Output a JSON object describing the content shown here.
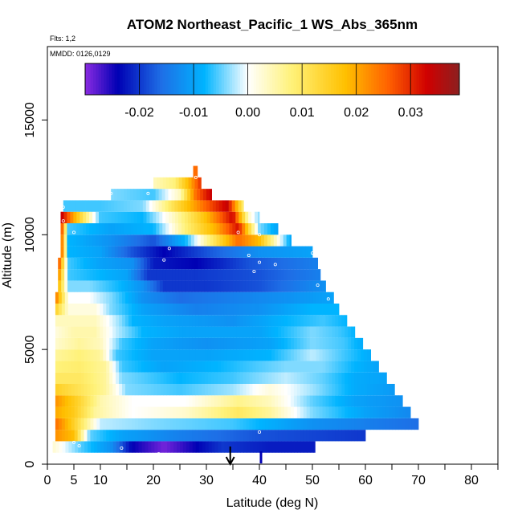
{
  "chart_data": {
    "type": "heatmap",
    "title": "ATOM2 Northeast_Pacific_1 WS_Abs_365nm",
    "flights_note": "Flts: 1,2",
    "date_note": "MMDD: 0126,0129",
    "xlabel": "Latitude (deg N)",
    "ylabel": "Altitude (m)",
    "xlim": [
      0,
      85
    ],
    "ylim": [
      0,
      18200
    ],
    "x_ticks": [
      0,
      5,
      10,
      20,
      30,
      40,
      50,
      60,
      70,
      80
    ],
    "x_minor_ticks": [
      15,
      25,
      35,
      45,
      55,
      65,
      75,
      85
    ],
    "y_ticks": [
      0,
      5000,
      10000,
      15000
    ],
    "colorbar": {
      "vmin": -0.03,
      "vmax": 0.039,
      "ticks": [
        -0.02,
        -0.01,
        0.0,
        0.01,
        0.02,
        0.03
      ],
      "tick_labels": [
        "-0.02",
        "-0.01",
        "0.00",
        "0.01",
        "0.02",
        "0.03"
      ],
      "colors": [
        "#8b2be2",
        "#0000b4",
        "#1e6ee6",
        "#00b4ff",
        "#ffffff",
        "#fff27a",
        "#ffc000",
        "#ff6000",
        "#d00000",
        "#8b2020"
      ]
    },
    "rows": [
      {
        "alt": 750,
        "lat_min": 1,
        "lat_max": 50.5,
        "stops": [
          [
            1,
            0.003
          ],
          [
            6,
            -0.005
          ],
          [
            12,
            -0.012
          ],
          [
            16,
            -0.024
          ],
          [
            22,
            -0.029
          ],
          [
            27,
            -0.025
          ],
          [
            33,
            -0.02
          ],
          [
            42,
            -0.022
          ],
          [
            50.5,
            -0.022
          ]
        ]
      },
      {
        "alt": 1250,
        "lat_min": 1.5,
        "lat_max": 60,
        "stops": [
          [
            1.5,
            0.022
          ],
          [
            5,
            0.018
          ],
          [
            8,
            -0.005
          ],
          [
            14,
            -0.01
          ],
          [
            25,
            -0.014
          ],
          [
            40,
            -0.018
          ],
          [
            60,
            -0.02
          ]
        ]
      },
      {
        "alt": 1750,
        "lat_min": 1.5,
        "lat_max": 70,
        "stops": [
          [
            1.5,
            0.025
          ],
          [
            4,
            0.018
          ],
          [
            7,
            0.008
          ],
          [
            10,
            -0.002
          ],
          [
            20,
            -0.004
          ],
          [
            35,
            -0.006
          ],
          [
            50,
            -0.012
          ],
          [
            70,
            -0.016
          ]
        ]
      },
      {
        "alt": 2250,
        "lat_min": 1.5,
        "lat_max": 68.5,
        "stops": [
          [
            1.5,
            0.02
          ],
          [
            5,
            0.016
          ],
          [
            9,
            0.006
          ],
          [
            16,
            0.0
          ],
          [
            26,
            0.003
          ],
          [
            36,
            0.01
          ],
          [
            42,
            0.006
          ],
          [
            50,
            -0.004
          ],
          [
            60,
            -0.01
          ],
          [
            68.5,
            -0.013
          ]
        ]
      },
      {
        "alt": 2750,
        "lat_min": 1.5,
        "lat_max": 67,
        "stops": [
          [
            1.5,
            0.022
          ],
          [
            6,
            0.014
          ],
          [
            10,
            0.005
          ],
          [
            16,
            0.0
          ],
          [
            26,
            0.0
          ],
          [
            36,
            0.007
          ],
          [
            42,
            0.004
          ],
          [
            50,
            -0.005
          ],
          [
            58,
            -0.01
          ],
          [
            67,
            -0.012
          ]
        ]
      },
      {
        "alt": 3250,
        "lat_min": 1.5,
        "lat_max": 65.5,
        "stops": [
          [
            1.5,
            0.015
          ],
          [
            6,
            0.011
          ],
          [
            11,
            0.006
          ],
          [
            15,
            -0.004
          ],
          [
            25,
            -0.006
          ],
          [
            35,
            -0.003
          ],
          [
            42,
            0.002
          ],
          [
            50,
            -0.003
          ],
          [
            58,
            -0.009
          ],
          [
            65.5,
            -0.011
          ]
        ]
      },
      {
        "alt": 3750,
        "lat_min": 1.5,
        "lat_max": 64,
        "stops": [
          [
            1.5,
            0.01
          ],
          [
            6,
            0.01
          ],
          [
            11,
            0.006
          ],
          [
            14,
            -0.004
          ],
          [
            25,
            -0.008
          ],
          [
            35,
            -0.006
          ],
          [
            45,
            -0.002
          ],
          [
            52,
            -0.005
          ],
          [
            58,
            -0.009
          ],
          [
            64,
            -0.01
          ]
        ]
      },
      {
        "alt": 4250,
        "lat_min": 1.5,
        "lat_max": 62.5,
        "stops": [
          [
            1.5,
            0.008
          ],
          [
            6,
            0.009
          ],
          [
            11,
            0.006
          ],
          [
            14,
            -0.006
          ],
          [
            22,
            -0.01
          ],
          [
            32,
            -0.008
          ],
          [
            45,
            -0.004
          ],
          [
            52,
            -0.004
          ],
          [
            58,
            -0.008
          ],
          [
            62.5,
            -0.01
          ]
        ]
      },
      {
        "alt": 4750,
        "lat_min": 1.5,
        "lat_max": 61,
        "stops": [
          [
            1.5,
            0.006
          ],
          [
            6,
            0.008
          ],
          [
            10,
            0.006
          ],
          [
            13,
            -0.006
          ],
          [
            20,
            -0.01
          ],
          [
            30,
            -0.01
          ],
          [
            42,
            -0.008
          ],
          [
            50,
            -0.002
          ],
          [
            56,
            -0.006
          ],
          [
            61,
            -0.009
          ]
        ]
      },
      {
        "alt": 5250,
        "lat_min": 1.5,
        "lat_max": 59.5,
        "stops": [
          [
            1.5,
            0.003
          ],
          [
            6,
            0.006
          ],
          [
            10,
            0.004
          ],
          [
            14,
            -0.006
          ],
          [
            20,
            -0.01
          ],
          [
            30,
            -0.012
          ],
          [
            42,
            -0.01
          ],
          [
            50,
            -0.004
          ],
          [
            56,
            -0.006
          ],
          [
            59.5,
            -0.009
          ]
        ]
      },
      {
        "alt": 5750,
        "lat_min": 1.5,
        "lat_max": 58,
        "stops": [
          [
            1.5,
            0.002
          ],
          [
            5,
            0.005
          ],
          [
            9,
            0.005
          ],
          [
            13,
            -0.002
          ],
          [
            18,
            -0.008
          ],
          [
            26,
            -0.01
          ],
          [
            40,
            -0.01
          ],
          [
            50,
            -0.004
          ],
          [
            55,
            -0.006
          ],
          [
            58,
            -0.008
          ]
        ]
      },
      {
        "alt": 6250,
        "lat_min": 1.5,
        "lat_max": 56.5,
        "stops": [
          [
            1.5,
            0.004
          ],
          [
            5,
            0.004
          ],
          [
            9,
            0.004
          ],
          [
            14,
            -0.004
          ],
          [
            16,
            -0.008
          ],
          [
            22,
            -0.01
          ],
          [
            35,
            -0.012
          ],
          [
            45,
            -0.008
          ],
          [
            52,
            -0.006
          ],
          [
            56.5,
            -0.008
          ]
        ]
      },
      {
        "alt": 6750,
        "lat_min": 1.5,
        "lat_max": 55,
        "stops": [
          [
            1.5,
            0.015
          ],
          [
            4,
            0.002
          ],
          [
            9,
            0.002
          ],
          [
            12,
            -0.004
          ],
          [
            18,
            -0.01
          ],
          [
            28,
            -0.014
          ],
          [
            40,
            -0.012
          ],
          [
            50,
            -0.008
          ],
          [
            55,
            -0.008
          ]
        ]
      },
      {
        "alt": 7250,
        "lat_min": 1.5,
        "lat_max": 54,
        "stops": [
          [
            1.5,
            0.025
          ],
          [
            4,
            0.0
          ],
          [
            8,
            0.0
          ],
          [
            12,
            -0.004
          ],
          [
            18,
            -0.012
          ],
          [
            25,
            -0.016
          ],
          [
            35,
            -0.014
          ],
          [
            45,
            -0.012
          ],
          [
            54,
            -0.01
          ]
        ]
      },
      {
        "alt": 7750,
        "lat_min": 2,
        "lat_max": 52.5,
        "stops": [
          [
            2,
            0.02
          ],
          [
            4,
            -0.004
          ],
          [
            8,
            -0.004
          ],
          [
            14,
            -0.008
          ],
          [
            18,
            -0.012
          ],
          [
            22,
            -0.02
          ],
          [
            30,
            -0.02
          ],
          [
            40,
            -0.018
          ],
          [
            52.5,
            -0.012
          ]
        ]
      },
      {
        "alt": 8250,
        "lat_min": 2,
        "lat_max": 51.5,
        "stops": [
          [
            2,
            0.025
          ],
          [
            4,
            -0.006
          ],
          [
            10,
            -0.008
          ],
          [
            15,
            -0.01
          ],
          [
            19,
            -0.02
          ],
          [
            28,
            -0.02
          ],
          [
            40,
            -0.018
          ],
          [
            51.5,
            -0.014
          ]
        ]
      },
      {
        "alt": 8750,
        "lat_min": 2,
        "lat_max": 51,
        "stops": [
          [
            2,
            0.03
          ],
          [
            4,
            -0.006
          ],
          [
            10,
            -0.01
          ],
          [
            16,
            -0.012
          ],
          [
            20,
            -0.022
          ],
          [
            28,
            -0.024
          ],
          [
            38,
            -0.018
          ],
          [
            51,
            -0.014
          ]
        ]
      },
      {
        "alt": 9250,
        "lat_min": 2.5,
        "lat_max": 50,
        "stops": [
          [
            2.5,
            0.03
          ],
          [
            4,
            -0.008
          ],
          [
            10,
            -0.01
          ],
          [
            16,
            -0.018
          ],
          [
            22,
            -0.024
          ],
          [
            30,
            -0.018
          ],
          [
            40,
            -0.012
          ],
          [
            50,
            -0.01
          ]
        ]
      },
      {
        "alt": 9750,
        "lat_min": 2.5,
        "lat_max": 46,
        "stops": [
          [
            2.5,
            0.03
          ],
          [
            4,
            -0.008
          ],
          [
            12,
            -0.012
          ],
          [
            20,
            -0.018
          ],
          [
            26,
            -0.008
          ],
          [
            30,
            0.006
          ],
          [
            36,
            0.025
          ],
          [
            40,
            0.018
          ],
          [
            46,
            -0.01
          ]
        ]
      },
      {
        "alt": 10250,
        "lat_min": 2.5,
        "lat_max": 43.5,
        "stops": [
          [
            2.5,
            0.033
          ],
          [
            4,
            -0.006
          ],
          [
            12,
            -0.01
          ],
          [
            20,
            -0.008
          ],
          [
            26,
            0.008
          ],
          [
            32,
            0.02
          ],
          [
            36,
            0.032
          ],
          [
            40,
            -0.004
          ],
          [
            43.5,
            -0.01
          ]
        ]
      },
      {
        "alt": 10750,
        "lat_min": 2.5,
        "lat_max": 40,
        "stops": [
          [
            2.5,
            0.035
          ],
          [
            5,
            0.02
          ],
          [
            10,
            -0.006
          ],
          [
            18,
            -0.008
          ],
          [
            24,
            0.004
          ],
          [
            30,
            0.018
          ],
          [
            35,
            0.033
          ],
          [
            38,
            0.003
          ],
          [
            40,
            -0.004
          ]
        ]
      },
      {
        "alt": 11250,
        "lat_min": 3,
        "lat_max": 37,
        "stops": [
          [
            3,
            -0.006
          ],
          [
            10,
            -0.006
          ],
          [
            18,
            -0.004
          ],
          [
            24,
            0.012
          ],
          [
            30,
            0.026
          ],
          [
            34,
            0.034
          ],
          [
            37,
            0.008
          ]
        ]
      },
      {
        "alt": 11750,
        "lat_min": 12,
        "lat_max": 31,
        "stops": [
          [
            12,
            -0.004
          ],
          [
            20,
            -0.006
          ],
          [
            25,
            0.004
          ],
          [
            28,
            0.025
          ],
          [
            31,
            0.034
          ]
        ]
      },
      {
        "alt": 12250,
        "lat_min": 20,
        "lat_max": 29,
        "stops": [
          [
            20,
            0.004
          ],
          [
            24,
            0.008
          ],
          [
            27,
            0.02
          ],
          [
            29,
            0.03
          ]
        ]
      },
      {
        "alt": 12750,
        "lat_min": 27.5,
        "lat_max": 28.3,
        "stops": [
          [
            27.5,
            0.025
          ],
          [
            28.3,
            0.025
          ]
        ]
      }
    ],
    "sample_points": [
      [
        6,
        800
      ],
      [
        14,
        700
      ],
      [
        21,
        450
      ],
      [
        5,
        950
      ],
      [
        3,
        10600
      ],
      [
        5,
        10100
      ],
      [
        3,
        11200
      ],
      [
        12,
        11800
      ],
      [
        19,
        11800
      ],
      [
        28,
        12500
      ],
      [
        23,
        9400
      ],
      [
        22,
        8900
      ],
      [
        38,
        9100
      ],
      [
        40,
        8800
      ],
      [
        43,
        8700
      ],
      [
        39,
        8400
      ],
      [
        50,
        9200
      ],
      [
        54,
        9200
      ],
      [
        51,
        7800
      ],
      [
        53,
        7200
      ],
      [
        40,
        10000
      ],
      [
        36,
        10100
      ],
      [
        40,
        1400
      ],
      [
        70,
        1300
      ]
    ],
    "markers": [
      {
        "lat": 34.5,
        "type": "arrow"
      },
      {
        "lat": 40.3,
        "type": "bar"
      }
    ]
  }
}
